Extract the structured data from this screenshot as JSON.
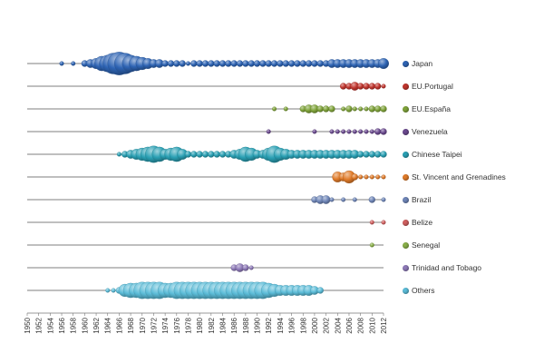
{
  "chart_data": {
    "type": "scatter",
    "subtype": "bubble-timeline",
    "x_tick_labels": [
      "1950",
      "1952",
      "1954",
      "1956",
      "1958",
      "1960",
      "1962",
      "1964",
      "1966",
      "1968",
      "1970",
      "1972",
      "1974",
      "1976",
      "1978",
      "1980",
      "1982",
      "1984",
      "1986",
      "1988",
      "1990",
      "1992",
      "1994",
      "1996",
      "1998",
      "2000",
      "2002",
      "2004",
      "2006",
      "2008",
      "2010",
      "2012"
    ],
    "xlim": [
      1950,
      2012
    ],
    "legend_position": "right",
    "grid": "horizontal row lines",
    "series": [
      {
        "name": "Japan",
        "color": "#2e64b4",
        "points": [
          [
            1956,
            1
          ],
          [
            1958,
            1
          ],
          [
            1960,
            2
          ],
          [
            1961,
            3
          ],
          [
            1962,
            4
          ],
          [
            1963,
            6
          ],
          [
            1964,
            7
          ],
          [
            1965,
            9
          ],
          [
            1966,
            10
          ],
          [
            1967,
            9
          ],
          [
            1968,
            7
          ],
          [
            1969,
            6
          ],
          [
            1970,
            5
          ],
          [
            1971,
            4
          ],
          [
            1972,
            3
          ],
          [
            1973,
            3
          ],
          [
            1974,
            2
          ],
          [
            1975,
            2
          ],
          [
            1976,
            2
          ],
          [
            1977,
            2
          ],
          [
            1978,
            1
          ],
          [
            1979,
            2
          ],
          [
            1980,
            2
          ],
          [
            1981,
            2
          ],
          [
            1982,
            2
          ],
          [
            1983,
            2
          ],
          [
            1984,
            2
          ],
          [
            1985,
            2
          ],
          [
            1986,
            2
          ],
          [
            1987,
            2
          ],
          [
            1988,
            2
          ],
          [
            1989,
            2
          ],
          [
            1990,
            2
          ],
          [
            1991,
            2
          ],
          [
            1992,
            2
          ],
          [
            1993,
            2
          ],
          [
            1994,
            2
          ],
          [
            1995,
            2
          ],
          [
            1996,
            2
          ],
          [
            1997,
            2
          ],
          [
            1998,
            2
          ],
          [
            1999,
            2
          ],
          [
            2000,
            2
          ],
          [
            2001,
            2
          ],
          [
            2002,
            2
          ],
          [
            2003,
            3
          ],
          [
            2004,
            3
          ],
          [
            2005,
            3
          ],
          [
            2006,
            3
          ],
          [
            2007,
            3
          ],
          [
            2008,
            3
          ],
          [
            2009,
            3
          ],
          [
            2010,
            3
          ],
          [
            2011,
            3
          ],
          [
            2012,
            4
          ]
        ]
      },
      {
        "name": "EU.Portugal",
        "color": "#c0352e",
        "points": [
          [
            2005,
            2
          ],
          [
            2006,
            2
          ],
          [
            2007,
            3
          ],
          [
            2008,
            2
          ],
          [
            2009,
            2
          ],
          [
            2010,
            2
          ],
          [
            2011,
            2
          ],
          [
            2012,
            1
          ]
        ]
      },
      {
        "name": "EU.España",
        "color": "#7fa33a",
        "points": [
          [
            1993,
            1
          ],
          [
            1995,
            1
          ],
          [
            1998,
            2
          ],
          [
            1999,
            3
          ],
          [
            2000,
            3
          ],
          [
            2001,
            2
          ],
          [
            2002,
            2
          ],
          [
            2003,
            2
          ],
          [
            2005,
            1
          ],
          [
            2006,
            2
          ],
          [
            2007,
            1
          ],
          [
            2008,
            1
          ],
          [
            2009,
            1
          ],
          [
            2010,
            2
          ],
          [
            2011,
            2
          ],
          [
            2012,
            2
          ]
        ]
      },
      {
        "name": "Venezuela",
        "color": "#6b4a8f",
        "points": [
          [
            1992,
            1
          ],
          [
            2000,
            1
          ],
          [
            2003,
            1
          ],
          [
            2004,
            1
          ],
          [
            2005,
            1
          ],
          [
            2006,
            1
          ],
          [
            2007,
            1
          ],
          [
            2008,
            1
          ],
          [
            2009,
            1
          ],
          [
            2010,
            1
          ],
          [
            2011,
            2
          ],
          [
            2012,
            2
          ]
        ]
      },
      {
        "name": "Chinese Taipei",
        "color": "#2aa0b4",
        "points": [
          [
            1966,
            1
          ],
          [
            1967,
            2
          ],
          [
            1968,
            3
          ],
          [
            1969,
            4
          ],
          [
            1970,
            5
          ],
          [
            1971,
            6
          ],
          [
            1972,
            7
          ],
          [
            1973,
            6
          ],
          [
            1974,
            4
          ],
          [
            1975,
            5
          ],
          [
            1976,
            6
          ],
          [
            1977,
            4
          ],
          [
            1978,
            2
          ],
          [
            1979,
            2
          ],
          [
            1980,
            2
          ],
          [
            1981,
            2
          ],
          [
            1982,
            2
          ],
          [
            1983,
            2
          ],
          [
            1984,
            2
          ],
          [
            1985,
            2
          ],
          [
            1986,
            3
          ],
          [
            1987,
            4
          ],
          [
            1988,
            6
          ],
          [
            1989,
            5
          ],
          [
            1990,
            3
          ],
          [
            1991,
            3
          ],
          [
            1992,
            5
          ],
          [
            1993,
            7
          ],
          [
            1994,
            5
          ],
          [
            1995,
            4
          ],
          [
            1996,
            3
          ],
          [
            1997,
            3
          ],
          [
            1998,
            3
          ],
          [
            1999,
            3
          ],
          [
            2000,
            3
          ],
          [
            2001,
            3
          ],
          [
            2002,
            3
          ],
          [
            2003,
            3
          ],
          [
            2004,
            3
          ],
          [
            2005,
            3
          ],
          [
            2006,
            3
          ],
          [
            2007,
            3
          ],
          [
            2008,
            2
          ],
          [
            2009,
            2
          ],
          [
            2010,
            2
          ],
          [
            2011,
            2
          ],
          [
            2012,
            2
          ]
        ]
      },
      {
        "name": "St. Vincent and Grenadines",
        "color": "#e07b2a",
        "points": [
          [
            2004,
            4
          ],
          [
            2005,
            3
          ],
          [
            2006,
            5
          ],
          [
            2007,
            2
          ],
          [
            2008,
            1
          ],
          [
            2009,
            1
          ],
          [
            2010,
            1
          ],
          [
            2011,
            1
          ],
          [
            2012,
            1
          ]
        ]
      },
      {
        "name": "Brazil",
        "color": "#6f86b8",
        "points": [
          [
            2000,
            2
          ],
          [
            2001,
            3
          ],
          [
            2002,
            3
          ],
          [
            2003,
            1
          ],
          [
            2005,
            1
          ],
          [
            2007,
            1
          ],
          [
            2010,
            2
          ],
          [
            2012,
            1
          ]
        ]
      },
      {
        "name": "Belize",
        "color": "#d06060",
        "points": [
          [
            2010,
            1
          ],
          [
            2012,
            1
          ]
        ]
      },
      {
        "name": "Senegal",
        "color": "#8ab04a",
        "points": [
          [
            2010,
            1
          ]
        ]
      },
      {
        "name": "Trinidad and Tobago",
        "color": "#8e7ab8",
        "points": [
          [
            1986,
            2
          ],
          [
            1987,
            3
          ],
          [
            1988,
            2
          ],
          [
            1989,
            1
          ]
        ]
      },
      {
        "name": "Others",
        "color": "#5bbcd8",
        "points": [
          [
            1964,
            1
          ],
          [
            1965,
            1
          ],
          [
            1966,
            2
          ],
          [
            1967,
            5
          ],
          [
            1968,
            6
          ],
          [
            1969,
            6
          ],
          [
            1970,
            7
          ],
          [
            1971,
            7
          ],
          [
            1972,
            7
          ],
          [
            1973,
            7
          ],
          [
            1974,
            6
          ],
          [
            1975,
            6
          ],
          [
            1976,
            7
          ],
          [
            1977,
            7
          ],
          [
            1978,
            7
          ],
          [
            1979,
            7
          ],
          [
            1980,
            7
          ],
          [
            1981,
            7
          ],
          [
            1982,
            7
          ],
          [
            1983,
            7
          ],
          [
            1984,
            7
          ],
          [
            1985,
            7
          ],
          [
            1986,
            7
          ],
          [
            1987,
            7
          ],
          [
            1988,
            7
          ],
          [
            1989,
            7
          ],
          [
            1990,
            7
          ],
          [
            1991,
            7
          ],
          [
            1992,
            6
          ],
          [
            1993,
            5
          ],
          [
            1994,
            4
          ],
          [
            1995,
            4
          ],
          [
            1996,
            4
          ],
          [
            1997,
            4
          ],
          [
            1998,
            4
          ],
          [
            1999,
            4
          ],
          [
            2000,
            3
          ],
          [
            2001,
            2
          ]
        ]
      }
    ]
  }
}
